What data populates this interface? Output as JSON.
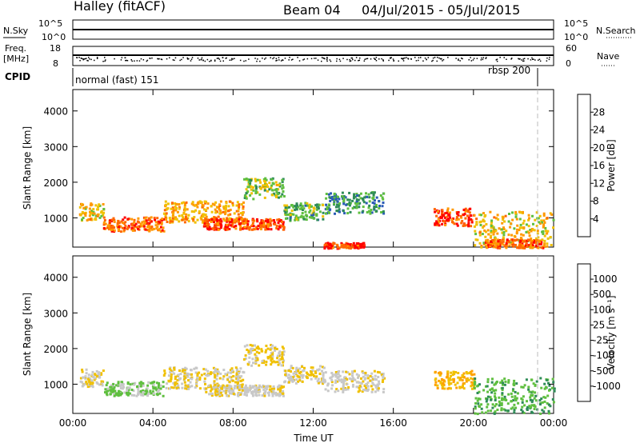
{
  "header": {
    "station": "Halley (fitACF)",
    "beam": "Beam 04",
    "date_range": "04/Jul/2015 - 05/Jul/2015"
  },
  "top_panels": {
    "nsky_label": "N.Sky",
    "nsky_ticks": [
      "10^5",
      "10^0"
    ],
    "nsearch_label": "N.Search",
    "nsearch_right_ticks": [
      "10^5",
      "10^0"
    ],
    "freq_label": "Freq.",
    "freq_unit": "[MHz]",
    "freq_ticks": [
      "18",
      "8"
    ],
    "nave_label": "Nave",
    "nave_ticks": [
      "60",
      "0"
    ],
    "cpid_label": "CPID",
    "cpid_mode_1": "normal (fast) 151",
    "cpid_mode_2": "rbsp 200"
  },
  "colors": {
    "power_scale": [
      "#0000ff",
      "#2a5bb5",
      "#2e8b57",
      "#5fbf3f",
      "#f0c000",
      "#ff9900",
      "#ff6600",
      "#ff0000"
    ],
    "velocity_scale": [
      "#1c3fbf",
      "#2a5bb5",
      "#2e8b57",
      "#5fbf3f",
      "#c8c8c8",
      "#f0c000",
      "#ffa000",
      "#ff6600",
      "#ff0000"
    ]
  },
  "chart_data": [
    {
      "type": "heatmap",
      "panel": "power",
      "ylabel": "Slant Range [km]",
      "yticks": [
        "1000",
        "2000",
        "3000",
        "4000"
      ],
      "ylim": [
        180,
        4600
      ],
      "xticks": [
        "00:00",
        "04:00",
        "08:00",
        "12:00",
        "16:00",
        "20:00",
        "00:00"
      ],
      "xlim_hours": [
        0,
        24
      ],
      "colorbar_label": "Power [dB]",
      "colorbar_ticks": [
        "4",
        "8",
        "12",
        "16",
        "20",
        "24",
        "28"
      ],
      "colorbar_range": [
        0,
        30
      ],
      "echo_bands": [
        {
          "t_start": 0.3,
          "t_end": 1.5,
          "r_center": 1200,
          "r_width": 250,
          "value": 18
        },
        {
          "t_start": 1.5,
          "t_end": 4.5,
          "r_center": 850,
          "r_width": 200,
          "value": 24
        },
        {
          "t_start": 4.5,
          "t_end": 8.5,
          "r_center": 1200,
          "r_width": 300,
          "value": 20
        },
        {
          "t_start": 6.5,
          "t_end": 10.5,
          "r_center": 850,
          "r_width": 150,
          "value": 26
        },
        {
          "t_start": 8.5,
          "t_end": 10.5,
          "r_center": 1850,
          "r_width": 300,
          "value": 14
        },
        {
          "t_start": 10.5,
          "t_end": 12.5,
          "r_center": 1200,
          "r_width": 250,
          "value": 12
        },
        {
          "t_start": 12.5,
          "t_end": 15.5,
          "r_center": 1450,
          "r_width": 300,
          "value": 10
        },
        {
          "t_start": 12.5,
          "t_end": 14.5,
          "r_center": 250,
          "r_width": 80,
          "value": 26
        },
        {
          "t_start": 18.0,
          "t_end": 20.0,
          "r_center": 1050,
          "r_width": 250,
          "value": 26
        },
        {
          "t_start": 20.0,
          "t_end": 24.0,
          "r_center": 700,
          "r_width": 500,
          "value": 18
        },
        {
          "t_start": 20.5,
          "t_end": 23.5,
          "r_center": 300,
          "r_width": 120,
          "value": 24
        }
      ]
    },
    {
      "type": "heatmap",
      "panel": "velocity",
      "ylabel": "Slant Range [km]",
      "yticks": [
        "1000",
        "2000",
        "3000",
        "4000"
      ],
      "ylim": [
        180,
        4600
      ],
      "xticks": [
        "00:00",
        "04:00",
        "08:00",
        "12:00",
        "16:00",
        "20:00",
        "00:00"
      ],
      "xlim_hours": [
        0,
        24
      ],
      "xlabel": "Time UT",
      "colorbar_label": "Velocity [m s⁻¹]",
      "colorbar_ticks": [
        "1000",
        "500",
        "100",
        "25",
        "-25",
        "-100",
        "-500",
        "-1000"
      ],
      "colorbar_range": [
        -1000,
        1000
      ],
      "echo_bands": [
        {
          "t_start": 0.3,
          "t_end": 1.5,
          "r_center": 1200,
          "r_width": 250,
          "value": -80
        },
        {
          "t_start": 1.5,
          "t_end": 4.5,
          "r_center": 900,
          "r_width": 200,
          "value": 150
        },
        {
          "t_start": 4.5,
          "t_end": 8.5,
          "r_center": 1200,
          "r_width": 300,
          "value": -120
        },
        {
          "t_start": 6.5,
          "t_end": 10.5,
          "r_center": 850,
          "r_width": 150,
          "value": -60
        },
        {
          "t_start": 8.5,
          "t_end": 10.5,
          "r_center": 1850,
          "r_width": 300,
          "value": -150
        },
        {
          "t_start": 10.5,
          "t_end": 12.5,
          "r_center": 1300,
          "r_width": 250,
          "value": -100
        },
        {
          "t_start": 12.5,
          "t_end": 15.5,
          "r_center": 1100,
          "r_width": 300,
          "value": -40
        },
        {
          "t_start": 18.0,
          "t_end": 20.0,
          "r_center": 1150,
          "r_width": 250,
          "value": -300
        },
        {
          "t_start": 20.0,
          "t_end": 24.0,
          "r_center": 700,
          "r_width": 500,
          "value": 300
        }
      ]
    }
  ]
}
